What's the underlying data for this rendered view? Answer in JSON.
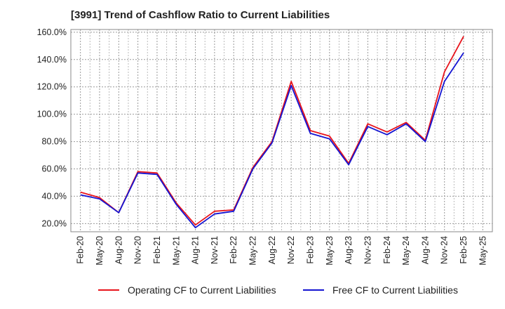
{
  "chart_data": {
    "type": "line",
    "title": "[3991]  Trend of Cashflow Ratio to Current Liabilities",
    "x": [
      "Feb-20",
      "May-20",
      "Aug-20",
      "Nov-20",
      "Feb-21",
      "May-21",
      "Aug-21",
      "Nov-21",
      "Feb-22",
      "May-22",
      "Aug-22",
      "Nov-22",
      "Feb-23",
      "May-23",
      "Aug-23",
      "Nov-23",
      "Feb-24",
      "May-24",
      "Aug-24",
      "Nov-24",
      "Feb-25",
      "May-25"
    ],
    "y_tick_labels": [
      "20.0%",
      "40.0%",
      "60.0%",
      "80.0%",
      "100.0%",
      "120.0%",
      "140.0%",
      "160.0%"
    ],
    "ylim": [
      14,
      162
    ],
    "y_ticks": [
      20,
      40,
      60,
      80,
      100,
      120,
      140,
      160
    ],
    "grid": true,
    "legend_position": "bottom",
    "series": [
      {
        "name": "Operating CF to Current Liabilities",
        "color": "#e8141c",
        "values": [
          43,
          39,
          28,
          58,
          57,
          35,
          19,
          29,
          30,
          61,
          80,
          124,
          88,
          84,
          64,
          93,
          87,
          94,
          81,
          131,
          157,
          null
        ]
      },
      {
        "name": "Free CF to Current Liabilities",
        "color": "#1414d2",
        "values": [
          41,
          38,
          28,
          57,
          56,
          34,
          17,
          27,
          29,
          60,
          79,
          121,
          86,
          82,
          63,
          91,
          85,
          93,
          80,
          124,
          145,
          null
        ]
      }
    ]
  }
}
